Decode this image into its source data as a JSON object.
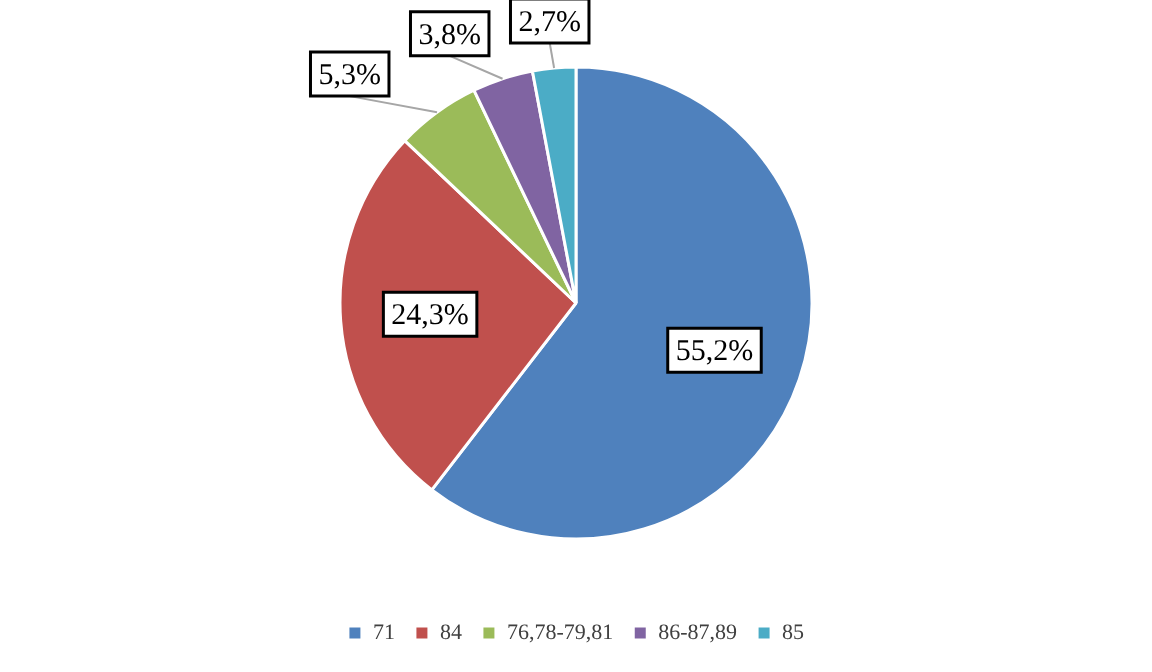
{
  "chart_data": {
    "type": "pie",
    "categories": [
      "71",
      "84",
      "76,78-79,81",
      "86-87,89",
      "85"
    ],
    "values": [
      55.2,
      24.3,
      5.3,
      3.8,
      2.7
    ],
    "colors": [
      "#4f81bd",
      "#c0504d",
      "#9bbb59",
      "#8064a2",
      "#4bacc6"
    ],
    "value_labels": [
      "55,2%",
      "24,3%",
      "5,3%",
      "3,8%",
      "2,7%"
    ],
    "legend": "bottom"
  }
}
